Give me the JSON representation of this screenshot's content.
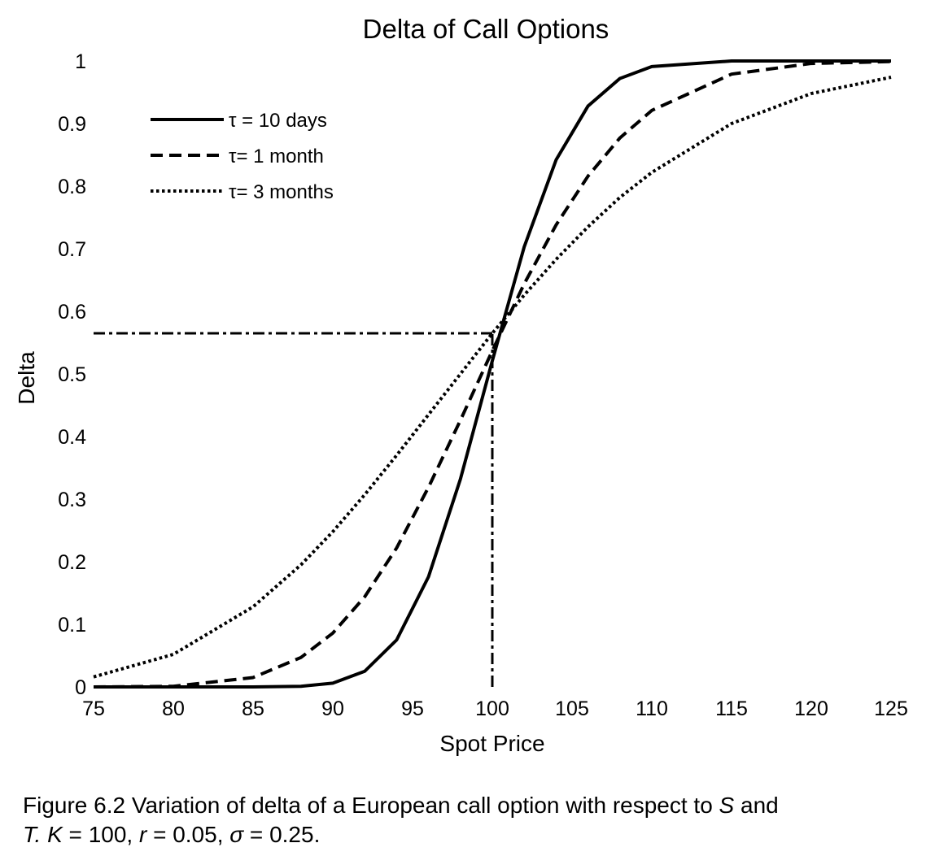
{
  "chart_data": {
    "type": "line",
    "title": "Delta of Call Options",
    "xlabel": "Spot Price",
    "ylabel": "Delta",
    "x": [
      75,
      80,
      85,
      88,
      90,
      92,
      94,
      96,
      98,
      100,
      102,
      104,
      106,
      108,
      110,
      115,
      120,
      125
    ],
    "series": [
      {
        "name": "τ = 10 days",
        "color": "#000000",
        "dash": "solid",
        "values": [
          0,
          0,
          0,
          0.001,
          0.006,
          0.025,
          0.075,
          0.176,
          0.332,
          0.521,
          0.703,
          0.842,
          0.928,
          0.972,
          0.991,
          1,
          1,
          1
        ]
      },
      {
        "name": "τ= 1 month",
        "color": "#000000",
        "dash": "dashed",
        "values": [
          0,
          0.001,
          0.015,
          0.047,
          0.086,
          0.144,
          0.222,
          0.319,
          0.426,
          0.537,
          0.644,
          0.738,
          0.816,
          0.877,
          0.921,
          0.979,
          0.996,
          0.999
        ]
      },
      {
        "name": "τ= 3 months",
        "color": "#000000",
        "dash": "dotted",
        "values": [
          0.016,
          0.052,
          0.128,
          0.195,
          0.248,
          0.307,
          0.37,
          0.435,
          0.5,
          0.565,
          0.626,
          0.683,
          0.735,
          0.782,
          0.822,
          0.9,
          0.948,
          0.974
        ]
      }
    ],
    "reference": {
      "x": 100,
      "y": 0.565
    },
    "xlim": [
      75,
      125
    ],
    "xticks": [
      75,
      80,
      85,
      90,
      95,
      100,
      105,
      110,
      115,
      120,
      125
    ],
    "ylim": [
      0,
      1
    ],
    "yticks": [
      0,
      0.1,
      0.2,
      0.3,
      0.4,
      0.5,
      0.6,
      0.7,
      0.8,
      0.9,
      1
    ],
    "grid": false,
    "legend": "upper left"
  },
  "caption": {
    "lines": [
      [
        {
          "text": "Figure 6.2 Variation of delta of a European call option with respect to ",
          "italic": false
        },
        {
          "text": "S",
          "italic": true
        },
        {
          "text": " and",
          "italic": false
        }
      ],
      [
        {
          "text": "T. K",
          "italic": true
        },
        {
          "text": " = 100, ",
          "italic": false
        },
        {
          "text": "r",
          "italic": true
        },
        {
          "text": " = 0.05, ",
          "italic": false
        },
        {
          "text": "σ",
          "italic": true
        },
        {
          "text": " = 0.25.",
          "italic": false
        }
      ]
    ]
  }
}
